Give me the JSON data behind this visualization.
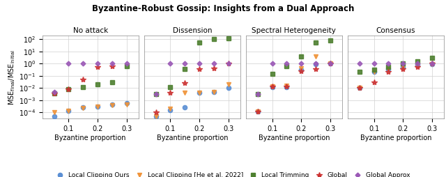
{
  "title": "Byzantine-Robust Gossip: Insights from a Dual Approach",
  "subplot_titles": [
    "No attack",
    "Dissension",
    "Spectral Heterogeneity",
    "Consensus"
  ],
  "xlabel": "Byzantine proportion",
  "ylabel": "MSE$_{\\mathrm{final}}$/MSE$_{\\mathrm{initial}}$",
  "series": {
    "local_clip_ours": {
      "label": "Local Clipping Ours",
      "color": "#5B8FD4",
      "marker": "o",
      "markersize": 4.5
    },
    "local_clip_he": {
      "label": "Local Clipping [He et al. 2022]",
      "color": "#F0943A",
      "marker": "v",
      "markersize": 4.5
    },
    "local_trim": {
      "label": "Local Trimming",
      "color": "#4E8030",
      "marker": "s",
      "markersize": 4.5
    },
    "global": {
      "label": "Global",
      "color": "#CC3333",
      "marker": "*",
      "markersize": 6
    },
    "global_approx": {
      "label": "Global Approx",
      "color": "#9B59B6",
      "marker": "D",
      "markersize": 3.5
    }
  },
  "data": {
    "no_attack": {
      "x": [
        0.05,
        0.1,
        0.15,
        0.2,
        0.25,
        0.3
      ],
      "local_clip_ours": [
        5e-05,
        0.00013,
        0.00025,
        0.00032,
        0.00045,
        0.00055
      ],
      "local_clip_he": [
        0.00011,
        0.00013,
        0.00022,
        0.0003,
        0.00038,
        0.00045
      ],
      "local_trim": [
        0.0035,
        0.008,
        0.012,
        0.02,
        0.028,
        0.6
      ],
      "global": [
        0.0035,
        0.008,
        0.05,
        0.5,
        0.6,
        null
      ],
      "global_approx": [
        0.005,
        1.0,
        1.0,
        1.0,
        1.0,
        1.0
      ]
    },
    "dissension": {
      "x": [
        0.05,
        0.1,
        0.15,
        0.2,
        0.25,
        0.3
      ],
      "local_clip_ours": [
        5e-05,
        0.00015,
        0.00025,
        0.004,
        0.005,
        0.01
      ],
      "local_clip_he": [
        5e-05,
        0.0002,
        0.004,
        0.004,
        0.005,
        0.02
      ],
      "local_trim": [
        0.003,
        0.012,
        0.35,
        50.0,
        100.0,
        110.0
      ],
      "global": [
        0.0001,
        0.004,
        0.025,
        0.35,
        0.4,
        1.0
      ],
      "global_approx": [
        0.003,
        1.0,
        1.0,
        1.0,
        1.0,
        1.0
      ]
    },
    "spectral_het": {
      "x": [
        0.05,
        0.1,
        0.15,
        0.2,
        0.25,
        0.3
      ],
      "local_clip_ours": [
        0.00012,
        0.012,
        0.012,
        0.3,
        0.9,
        1.0
      ],
      "local_clip_he": [
        0.00012,
        0.013,
        0.015,
        0.4,
        4.0,
        1.0
      ],
      "local_trim": [
        0.003,
        0.15,
        0.6,
        4.0,
        50.0,
        80.0
      ],
      "global": [
        0.00012,
        0.013,
        0.013,
        0.25,
        0.35,
        1.0
      ],
      "global_approx": [
        0.003,
        1.0,
        1.0,
        1.0,
        1.0,
        1.0
      ]
    },
    "consensus": {
      "x": [
        0.05,
        0.1,
        0.15,
        0.2,
        0.25,
        0.3
      ],
      "local_clip_ours": [
        0.01,
        0.2,
        0.35,
        0.5,
        0.8,
        0.9
      ],
      "local_clip_he": [
        0.01,
        0.2,
        0.35,
        0.5,
        0.7,
        0.9
      ],
      "local_trim": [
        0.2,
        0.3,
        0.5,
        1.0,
        1.5,
        3.0
      ],
      "global": [
        0.01,
        0.03,
        0.2,
        0.35,
        0.5,
        1.0
      ],
      "global_approx": [
        1.0,
        1.0,
        1.0,
        1.0,
        1.0,
        1.0
      ]
    }
  }
}
